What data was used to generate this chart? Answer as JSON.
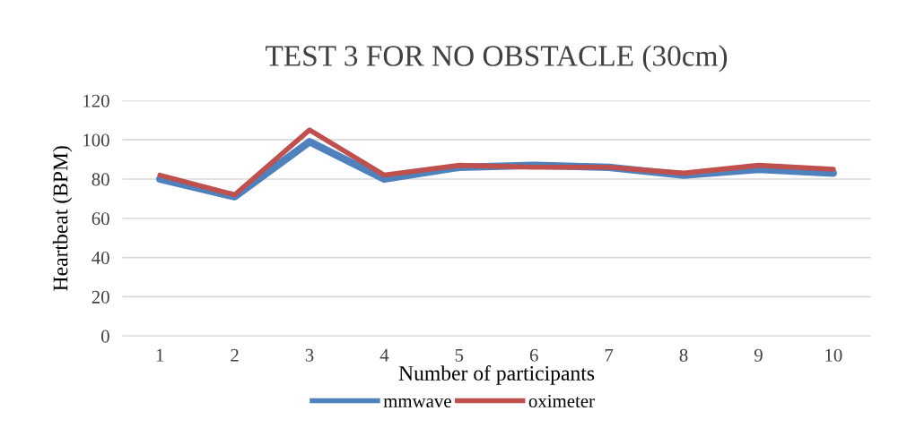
{
  "chart_data": {
    "type": "line",
    "title": "TEST 3 FOR NO OBSTACLE (30cm)",
    "xlabel": "Number of participants",
    "ylabel": "Heartbeat (BPM)",
    "categories": [
      "1",
      "2",
      "3",
      "4",
      "5",
      "6",
      "7",
      "8",
      "9",
      "10"
    ],
    "series": [
      {
        "name": "mmwave",
        "color": "#4f81bd",
        "values": [
          80,
          71,
          99,
          80,
          86,
          87,
          86,
          82,
          85,
          83
        ]
      },
      {
        "name": "oximeter",
        "color": "#c0504d",
        "values": [
          82,
          72,
          105,
          82,
          87,
          86,
          86,
          83,
          87,
          85
        ]
      }
    ],
    "ylim": [
      0,
      120
    ],
    "yticks": [
      0,
      20,
      40,
      60,
      80,
      100,
      120
    ],
    "grid": "y",
    "legend": "bottom",
    "marker": "none",
    "line_style": "solid"
  }
}
